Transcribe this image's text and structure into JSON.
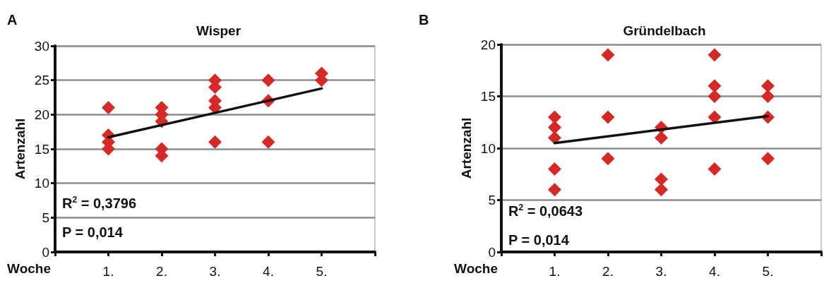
{
  "chart_data": [
    {
      "type": "scatter",
      "title": "Wisper",
      "xlabel": "Woche",
      "ylabel": "Artenzahl",
      "annotations": [
        "A",
        "R$^{2}$ = 0,3796",
        "P = 0,014"
      ],
      "xlim": [
        0,
        6
      ],
      "xticks": [
        {
          "value": 0,
          "label": null
        },
        {
          "value": 1,
          "label": "1."
        },
        {
          "value": 2,
          "label": "2."
        },
        {
          "value": 3,
          "label": "3."
        },
        {
          "value": 4,
          "label": "4."
        },
        {
          "value": 5,
          "label": "5."
        },
        {
          "value": 6,
          "label": null
        }
      ],
      "ylim": [
        0,
        30
      ],
      "yticks": [
        0,
        5,
        10,
        15,
        20,
        25,
        30
      ],
      "grid": "y",
      "marker": "diamond",
      "series": [
        {
          "color": "#d42a27",
          "x": [
            1,
            1,
            1,
            1,
            2,
            2,
            2,
            2,
            2,
            3,
            3,
            3,
            3,
            3,
            4,
            4,
            4,
            5,
            5
          ],
          "values": [
            21,
            17,
            16,
            15,
            21,
            20,
            19,
            15,
            14,
            25,
            24,
            22,
            21,
            16,
            25,
            22,
            16,
            26,
            25
          ]
        },
        {
          "type": "line",
          "color": "#111111",
          "marker": "none",
          "line_style": "solid",
          "x": [
            1,
            5
          ],
          "values": [
            16.7,
            23.8
          ]
        }
      ]
    },
    {
      "type": "scatter",
      "title": "Gründelbach",
      "xlabel": "Woche",
      "ylabel": "Artenzahl",
      "annotations": [
        "B",
        "R$^{2}$ = 0,0643",
        "P = 0,014"
      ],
      "xlim": [
        0,
        6
      ],
      "xticks": [
        {
          "value": 0,
          "label": null
        },
        {
          "value": 1,
          "label": "1."
        },
        {
          "value": 2,
          "label": "2."
        },
        {
          "value": 3,
          "label": "3."
        },
        {
          "value": 4,
          "label": "4."
        },
        {
          "value": 5,
          "label": "5."
        },
        {
          "value": 6,
          "label": null
        }
      ],
      "ylim": [
        0,
        20
      ],
      "yticks": [
        0,
        5,
        10,
        15,
        20
      ],
      "grid": "y",
      "marker": "diamond",
      "series": [
        {
          "color": "#d42a27",
          "x": [
            1,
            1,
            1,
            1,
            1,
            2,
            2,
            2,
            3,
            3,
            3,
            3,
            4,
            4,
            4,
            4,
            4,
            5,
            5,
            5,
            5
          ],
          "values": [
            13,
            12,
            11,
            8,
            6,
            19,
            13,
            9,
            12,
            11,
            7,
            6,
            19,
            16,
            15,
            13,
            8,
            16,
            15,
            13,
            9
          ]
        },
        {
          "type": "line",
          "color": "#111111",
          "marker": "none",
          "line_style": "solid",
          "x": [
            1,
            5
          ],
          "values": [
            10.5,
            13.1
          ]
        }
      ]
    }
  ]
}
